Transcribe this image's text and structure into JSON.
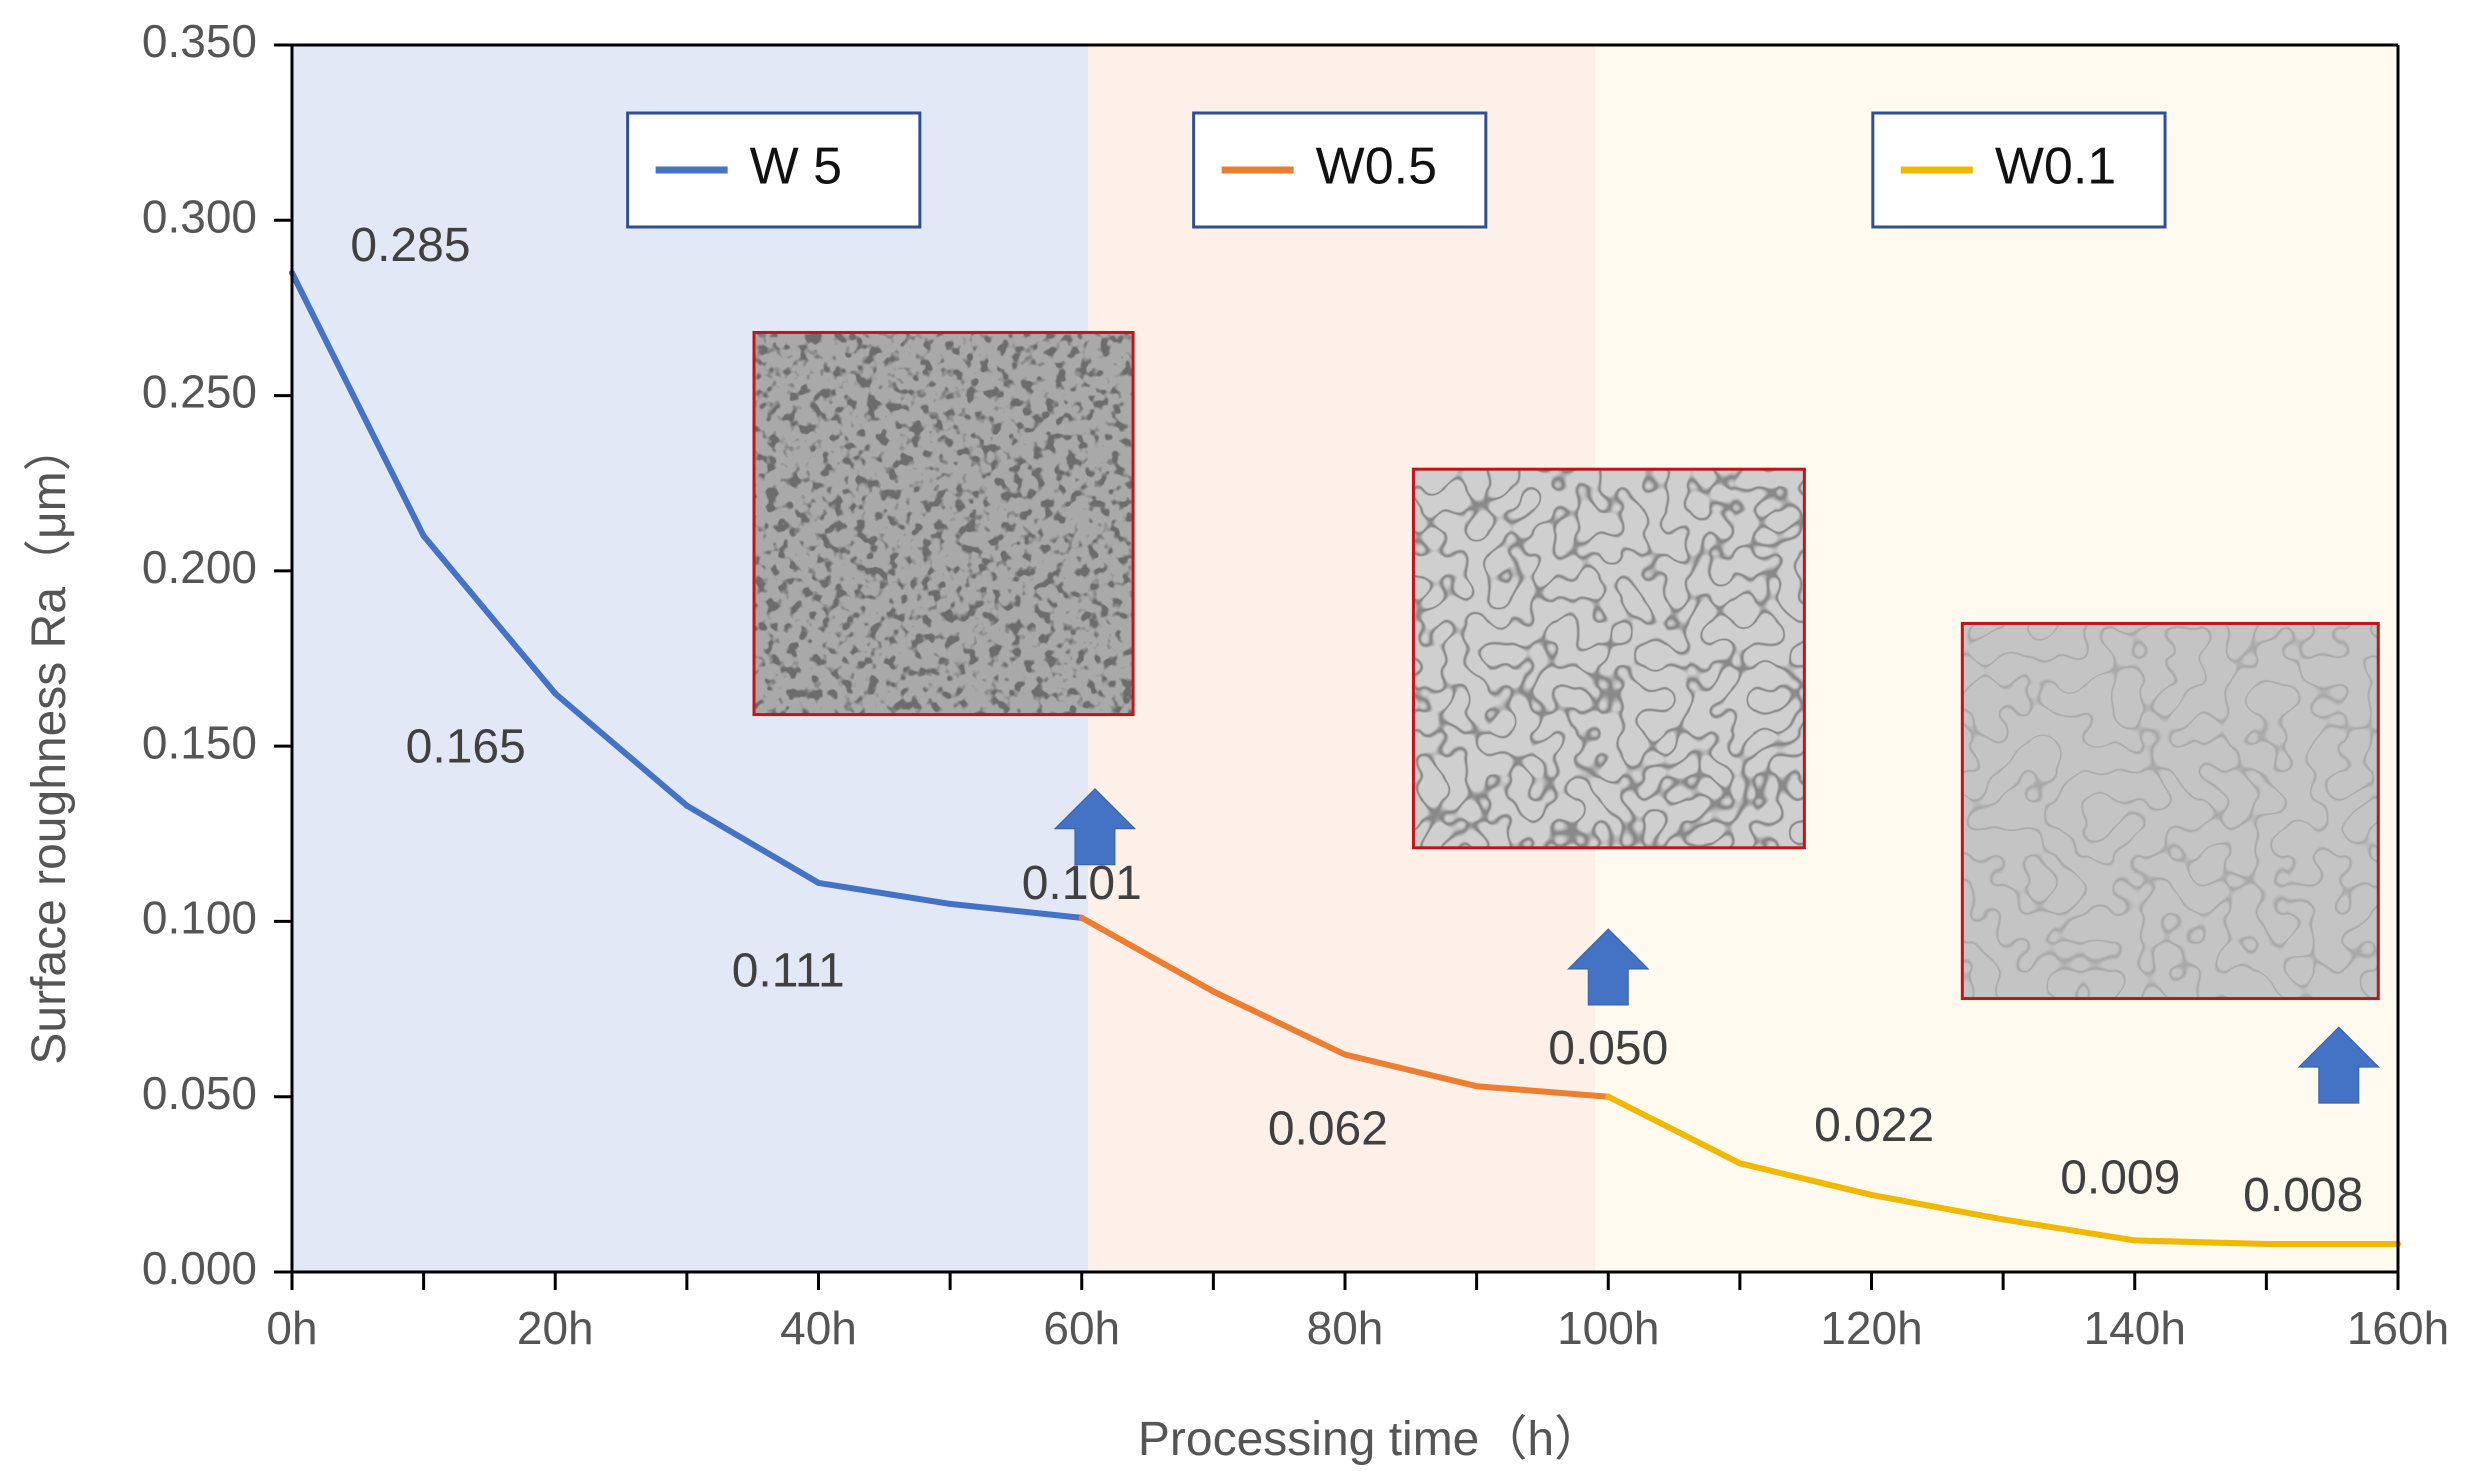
{
  "chart_data": {
    "type": "line",
    "title": "",
    "xlabel": "Processing time（h）",
    "ylabel": "Surface roughness Ra（μm）",
    "xlim": [
      0,
      160
    ],
    "ylim": [
      0,
      0.35
    ],
    "grid": false,
    "x_ticks": [
      0,
      20,
      40,
      60,
      80,
      100,
      120,
      140,
      160
    ],
    "x_tick_labels": [
      "0h",
      "20h",
      "40h",
      "60h",
      "80h",
      "100h",
      "120h",
      "140h",
      "160h"
    ],
    "y_ticks": [
      0,
      0.05,
      0.1,
      0.15,
      0.2,
      0.25,
      0.3,
      0.35
    ],
    "y_tick_labels": [
      "0.000",
      "0.050",
      "0.100",
      "0.150",
      "0.200",
      "0.250",
      "0.300",
      "0.350"
    ],
    "regions": [
      {
        "name": "W 5 stage",
        "x_start": 0,
        "x_end": 60.5,
        "color": "#e3e8f6"
      },
      {
        "name": "W0.5 stage",
        "x_start": 60.5,
        "x_end": 99,
        "color": "#fdf0e8"
      },
      {
        "name": "W0.1 stage",
        "x_start": 99,
        "x_end": 160,
        "color": "#fefaf0"
      }
    ],
    "series": [
      {
        "name": "W 5",
        "color": "#4472c4",
        "x": [
          0,
          10,
          20,
          30,
          40,
          50,
          60
        ],
        "values": [
          0.285,
          0.21,
          0.165,
          0.133,
          0.111,
          0.105,
          0.101
        ]
      },
      {
        "name": "W0.5",
        "color": "#ed7d31",
        "x": [
          60,
          70,
          80,
          90,
          100
        ],
        "values": [
          0.101,
          0.08,
          0.062,
          0.053,
          0.05
        ]
      },
      {
        "name": "W0.1",
        "color": "#f0b800",
        "x": [
          100,
          110,
          120,
          130,
          140,
          150,
          160
        ],
        "values": [
          0.05,
          0.031,
          0.022,
          0.015,
          0.009,
          0.008,
          0.008
        ]
      }
    ],
    "data_labels": [
      {
        "text": "0.285",
        "x": 9,
        "y": 0.292
      },
      {
        "text": "0.165",
        "x": 13.2,
        "y": 0.149
      },
      {
        "text": "0.101",
        "x": 60,
        "y": 0.11
      },
      {
        "text": "0.111",
        "x": 37.7,
        "y": 0.085
      },
      {
        "text": "0.062",
        "x": 78.7,
        "y": 0.04
      },
      {
        "text": "0.050",
        "x": 100,
        "y": 0.063
      },
      {
        "text": "0.022",
        "x": 120.2,
        "y": 0.041
      },
      {
        "text": "0.009",
        "x": 138.9,
        "y": 0.026
      },
      {
        "text": "0.008",
        "x": 152.8,
        "y": 0.021
      }
    ],
    "legends": [
      {
        "label": "W 5",
        "color": "#4472c4",
        "x_start": 25.5,
        "x_end": 47.7
      },
      {
        "label": "W0.5",
        "color": "#ed7d31",
        "x_start": 68.5,
        "x_end": 90.7
      },
      {
        "label": "W0.1",
        "color": "#f0b800",
        "x_start": 120.1,
        "x_end": 142.3
      }
    ],
    "arrows": [
      {
        "name": "arrow-60h",
        "x": 61,
        "y": 0.127
      },
      {
        "name": "arrow-100h",
        "x": 100,
        "y": 0.087
      },
      {
        "name": "arrow-160h",
        "x": 155.5,
        "y": 0.059
      }
    ],
    "insets": [
      {
        "name": "micrograph-60h",
        "x0": 35.1,
        "x1": 63.9,
        "y_top": 0.268,
        "y_bottom": 0.159,
        "texture": "spots"
      },
      {
        "name": "micrograph-100h",
        "x0": 85.2,
        "x1": 114.9,
        "y_top": 0.229,
        "y_bottom": 0.121,
        "texture": "cracks"
      },
      {
        "name": "micrograph-160h",
        "x0": 126.9,
        "x1": 158.5,
        "y_top": 0.185,
        "y_bottom": 0.078,
        "texture": "fine"
      }
    ]
  }
}
